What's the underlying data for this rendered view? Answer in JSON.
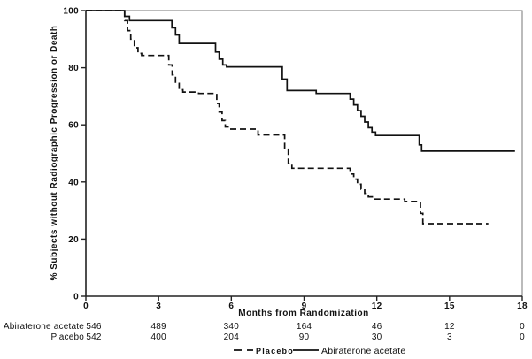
{
  "chart_data": {
    "type": "line",
    "subtype": "kaplan-meier-step",
    "title": "",
    "xlabel": "Months from Randomization",
    "ylabel": "% Subjects without Radiographic Progression or Death",
    "x_unit": "months",
    "xlim": [
      0,
      18
    ],
    "ylim": [
      0,
      100
    ],
    "x_ticks": [
      0,
      3,
      6,
      9,
      12,
      15,
      18
    ],
    "y_ticks": [
      0,
      20,
      40,
      60,
      80,
      100
    ],
    "grid": false,
    "frame": true,
    "legend_position": "bottom-center",
    "series": [
      {
        "name": "Abiraterone acetate",
        "line_style": "solid",
        "color": "#111111",
        "points": [
          [
            0,
            100
          ],
          [
            1.5,
            100
          ],
          [
            1.6,
            98
          ],
          [
            1.8,
            96.5
          ],
          [
            3.4,
            96.5
          ],
          [
            3.55,
            94
          ],
          [
            3.7,
            91.5
          ],
          [
            3.85,
            88.5
          ],
          [
            5.2,
            88.5
          ],
          [
            5.35,
            85.5
          ],
          [
            5.5,
            83
          ],
          [
            5.65,
            81
          ],
          [
            5.8,
            80.3
          ],
          [
            7.95,
            80.3
          ],
          [
            8.1,
            76
          ],
          [
            8.3,
            72
          ],
          [
            9.4,
            72
          ],
          [
            9.5,
            71
          ],
          [
            10.75,
            71
          ],
          [
            10.9,
            69
          ],
          [
            11.05,
            67
          ],
          [
            11.2,
            65
          ],
          [
            11.35,
            63
          ],
          [
            11.5,
            61
          ],
          [
            11.65,
            59
          ],
          [
            11.8,
            57.5
          ],
          [
            11.95,
            56.3
          ],
          [
            13.65,
            56.3
          ],
          [
            13.75,
            53
          ],
          [
            13.85,
            50.8
          ],
          [
            17.7,
            50.8
          ]
        ]
      },
      {
        "name": "Placebo",
        "line_style": "dashed",
        "color": "#111111",
        "points": [
          [
            0,
            100
          ],
          [
            1.5,
            100
          ],
          [
            1.6,
            96.5
          ],
          [
            1.72,
            93
          ],
          [
            1.85,
            90
          ],
          [
            2.0,
            87
          ],
          [
            2.15,
            85
          ],
          [
            2.3,
            84.3
          ],
          [
            3.3,
            84.3
          ],
          [
            3.42,
            81
          ],
          [
            3.56,
            77.5
          ],
          [
            3.7,
            74.5
          ],
          [
            3.85,
            72.3
          ],
          [
            4.0,
            71.5
          ],
          [
            4.65,
            71
          ],
          [
            5.3,
            71
          ],
          [
            5.4,
            67.5
          ],
          [
            5.5,
            64.5
          ],
          [
            5.62,
            61.5
          ],
          [
            5.75,
            59.3
          ],
          [
            5.9,
            58.5
          ],
          [
            7.0,
            58.5
          ],
          [
            7.1,
            56.5
          ],
          [
            8.05,
            56.5
          ],
          [
            8.2,
            51.5
          ],
          [
            8.35,
            46.5
          ],
          [
            8.5,
            44.8
          ],
          [
            10.75,
            44.8
          ],
          [
            10.9,
            42.8
          ],
          [
            11.05,
            41
          ],
          [
            11.2,
            39.2
          ],
          [
            11.35,
            37.5
          ],
          [
            11.5,
            36
          ],
          [
            11.65,
            34.8
          ],
          [
            11.85,
            34
          ],
          [
            13.05,
            34
          ],
          [
            13.15,
            33.2
          ],
          [
            13.7,
            33.2
          ],
          [
            13.8,
            29
          ],
          [
            13.9,
            25.4
          ],
          [
            16.6,
            25.4
          ]
        ]
      }
    ],
    "legend": {
      "entries": [
        {
          "label": "Placebo",
          "line": "dashed"
        },
        {
          "label": "Abiraterone acetate",
          "line": "solid"
        }
      ]
    },
    "risk_table": {
      "times": [
        0,
        3,
        6,
        9,
        12,
        15,
        18
      ],
      "rows": [
        {
          "label": "Abiraterone acetate",
          "counts": [
            546,
            489,
            340,
            164,
            46,
            12,
            0
          ]
        },
        {
          "label": "Placebo",
          "counts": [
            542,
            400,
            204,
            90,
            30,
            3,
            0
          ]
        }
      ]
    }
  },
  "colors": {
    "curve": "#111111",
    "frame": "#777777",
    "axis": "#222222",
    "text": "#111111",
    "background": "#ffffff"
  }
}
